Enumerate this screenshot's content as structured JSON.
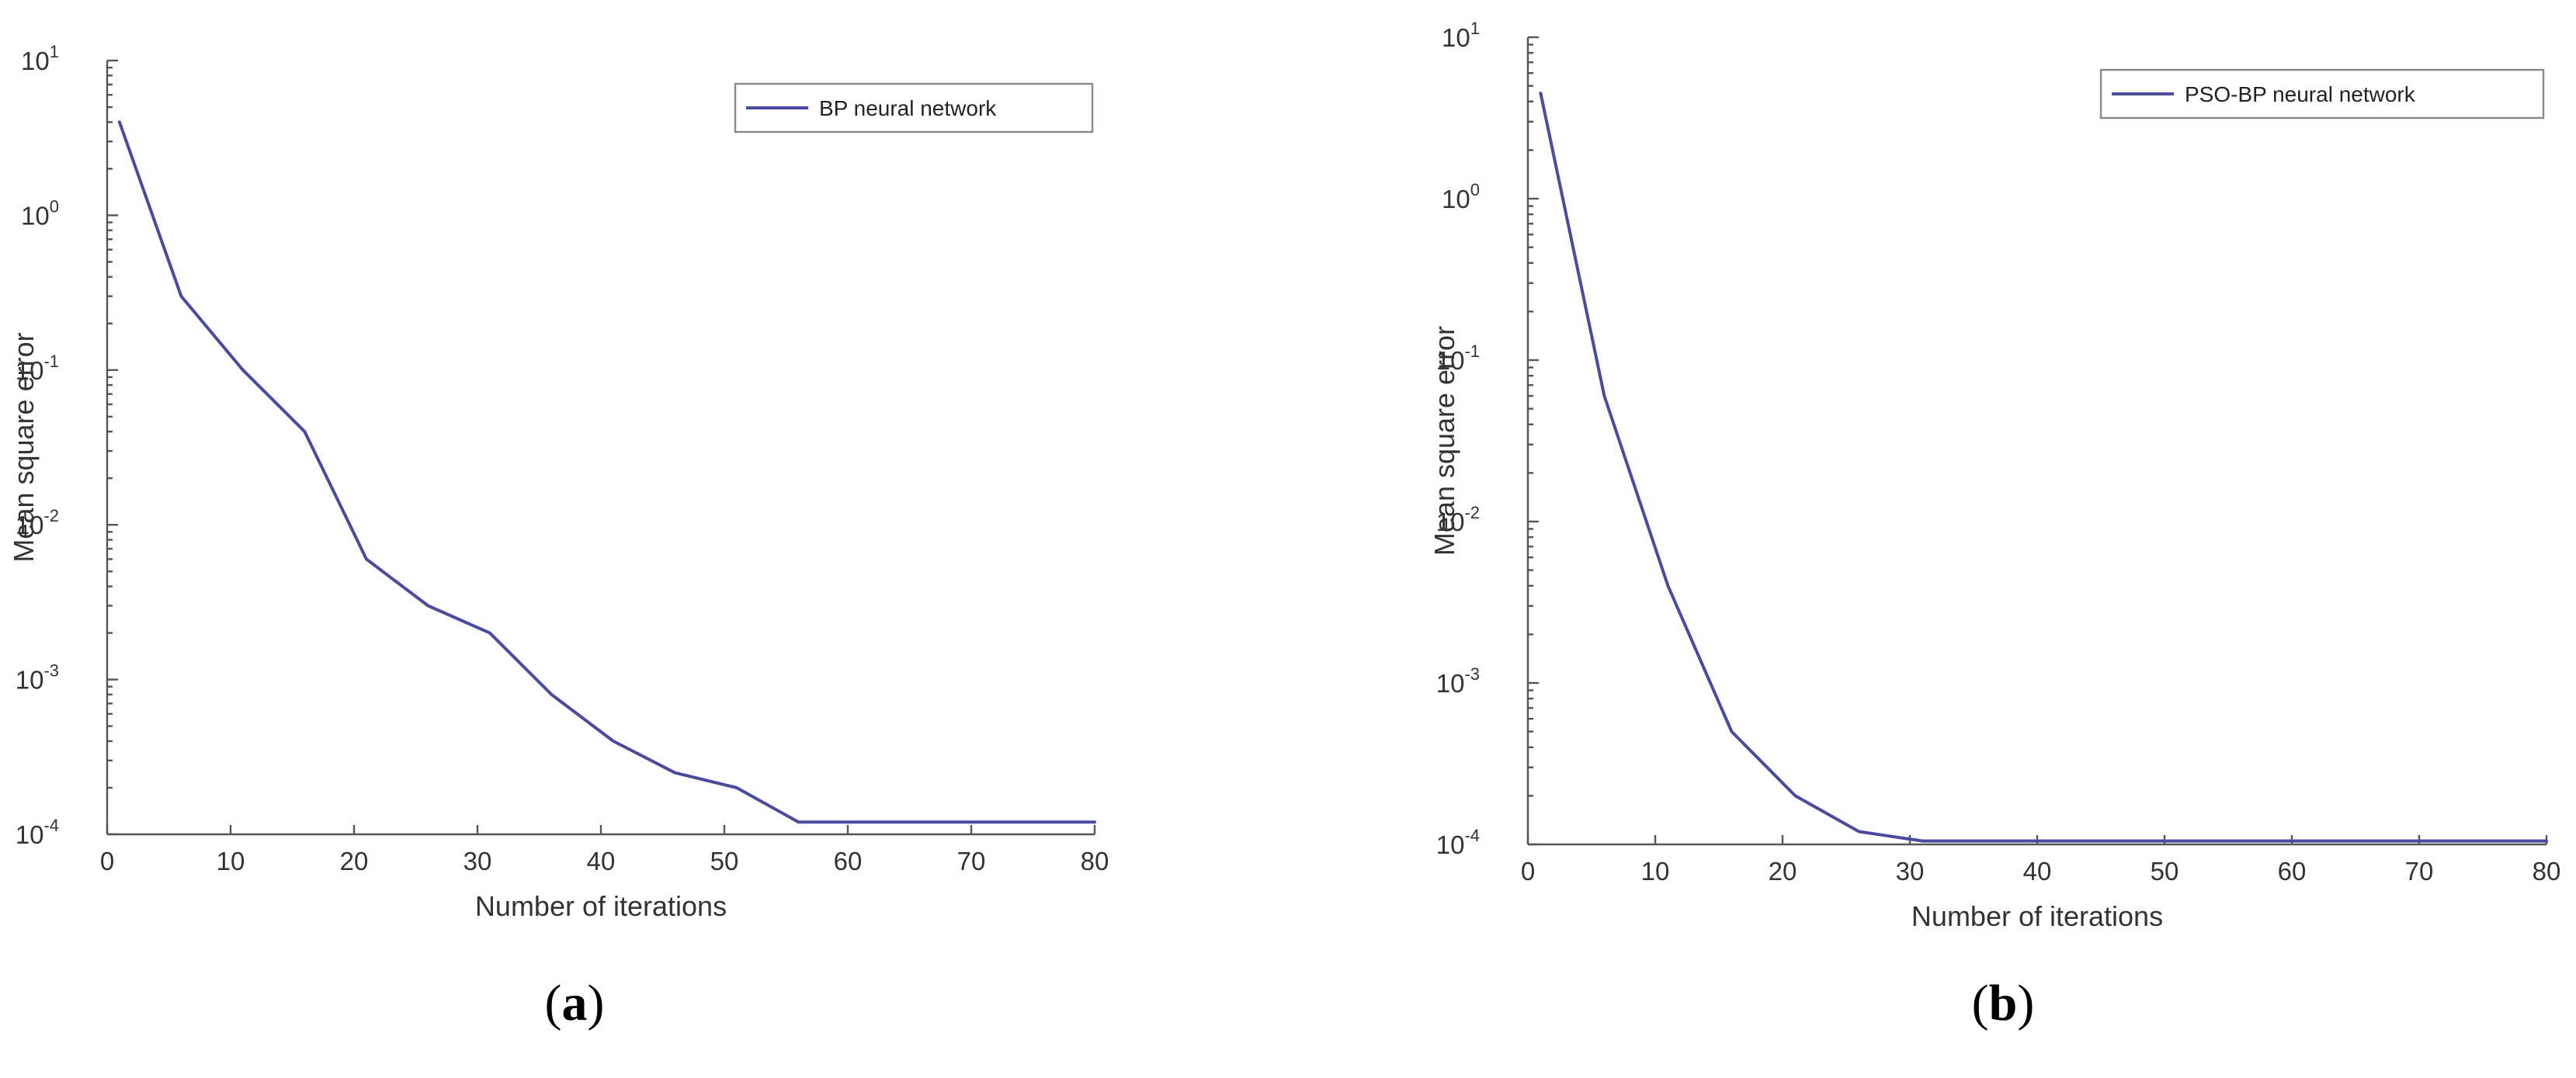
{
  "chart_data": [
    {
      "type": "line",
      "panel_label": "a",
      "xlabel": "Number of iterations",
      "ylabel": "Mean square error",
      "xlim": [
        0,
        80
      ],
      "ylim": [
        0.0001,
        10
      ],
      "y_scale": "log",
      "xticks": [
        "0",
        "10",
        "20",
        "30",
        "40",
        "50",
        "60",
        "70",
        "80"
      ],
      "yticks": [
        {
          "base": "10",
          "exp": "1"
        },
        {
          "base": "10",
          "exp": "0"
        },
        {
          "base": "10",
          "exp": "-1"
        },
        {
          "base": "10",
          "exp": "-2"
        },
        {
          "base": "10",
          "exp": "-3"
        },
        {
          "base": "10",
          "exp": "-4"
        }
      ],
      "legend_position": "top-right",
      "series": [
        {
          "name": "BP neural network",
          "color": "#4a4aa0",
          "x": [
            1,
            6,
            11,
            16,
            21,
            26,
            31,
            36,
            41,
            46,
            51,
            56,
            61,
            66,
            71,
            76,
            80
          ],
          "y": [
            4,
            0.3,
            0.1,
            0.04,
            0.006,
            0.003,
            0.002,
            0.0008,
            0.0004,
            0.00025,
            0.0002,
            0.00012,
            0.00012,
            0.00012,
            0.00012,
            0.00012,
            0.00012
          ]
        }
      ]
    },
    {
      "type": "line",
      "panel_label": "b",
      "xlabel": "Number of iterations",
      "ylabel": "Mean square error",
      "xlim": [
        0,
        80
      ],
      "ylim": [
        0.0001,
        10
      ],
      "y_scale": "log",
      "xticks": [
        "0",
        "10",
        "20",
        "30",
        "40",
        "50",
        "60",
        "70",
        "80"
      ],
      "yticks": [
        {
          "base": "10",
          "exp": "1"
        },
        {
          "base": "10",
          "exp": "0"
        },
        {
          "base": "10",
          "exp": "-1"
        },
        {
          "base": "10",
          "exp": "-2"
        },
        {
          "base": "10",
          "exp": "-3"
        },
        {
          "base": "10",
          "exp": "-4"
        }
      ],
      "legend_position": "top-right",
      "series": [
        {
          "name": "PSO-BP neural network",
          "color": "#4a4aa0",
          "x": [
            1,
            6,
            11,
            16,
            21,
            26,
            31,
            36,
            41,
            46,
            51,
            56,
            61,
            66,
            71,
            76,
            80
          ],
          "y": [
            4.5,
            0.06,
            0.004,
            0.0005,
            0.0002,
            0.00012,
            0.000105,
            0.000105,
            0.000105,
            0.000105,
            0.000105,
            0.000105,
            0.000105,
            0.000105,
            0.000105,
            0.000105,
            0.000105
          ]
        }
      ]
    }
  ]
}
